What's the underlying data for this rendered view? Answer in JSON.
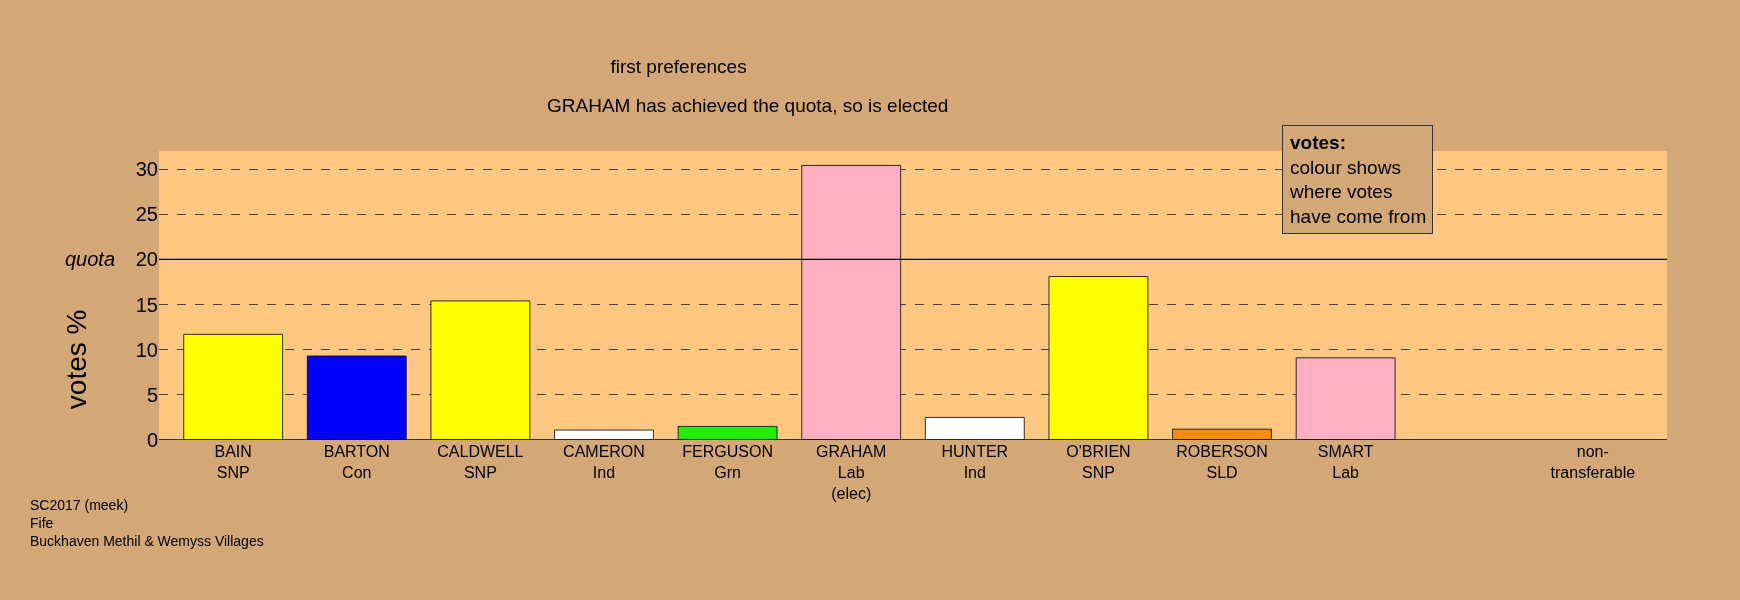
{
  "chart_data": {
    "type": "bar",
    "title": "first preferences",
    "subtitle": "GRAHAM has achieved the quota, so is elected",
    "ylabel": "votes %",
    "categories": [
      "BAIN\nSNP",
      "BARTON\nCon",
      "CALDWELL\nSNP",
      "CAMERON\nInd",
      "FERGUSON\nGrn",
      "GRAHAM\nLab\n(elec)",
      "HUNTER\nInd",
      "O'BRIEN\nSNP",
      "ROBERSON\nSLD",
      "SMART\nLab",
      null,
      "non-\ntransferable"
    ],
    "values": [
      11.7,
      9.3,
      15.4,
      1.1,
      1.5,
      30.4,
      2.5,
      18.1,
      1.2,
      9.1,
      null,
      null
    ],
    "colors": [
      "#ffff00",
      "#0000ff",
      "#ffff00",
      "#ffffff",
      "#22ee00",
      "#ffb0c0",
      "#ffffff",
      "#ffff00",
      "#ff8c00",
      "#ffb0c0",
      "#ffffff",
      "#ffffff"
    ],
    "ylim": [
      0,
      32
    ],
    "yticks": [
      0,
      5,
      10,
      15,
      20,
      25,
      30
    ],
    "grid": "y",
    "ref_lines": [
      {
        "axis": "y",
        "value": 20,
        "label": "quota"
      }
    ],
    "annotations": [
      "votes:\ncolour shows\nwhere votes\nhave come from",
      "SC2017 (meek)\nFife\nBuckhaven Methil & Wemyss Villages"
    ]
  }
}
